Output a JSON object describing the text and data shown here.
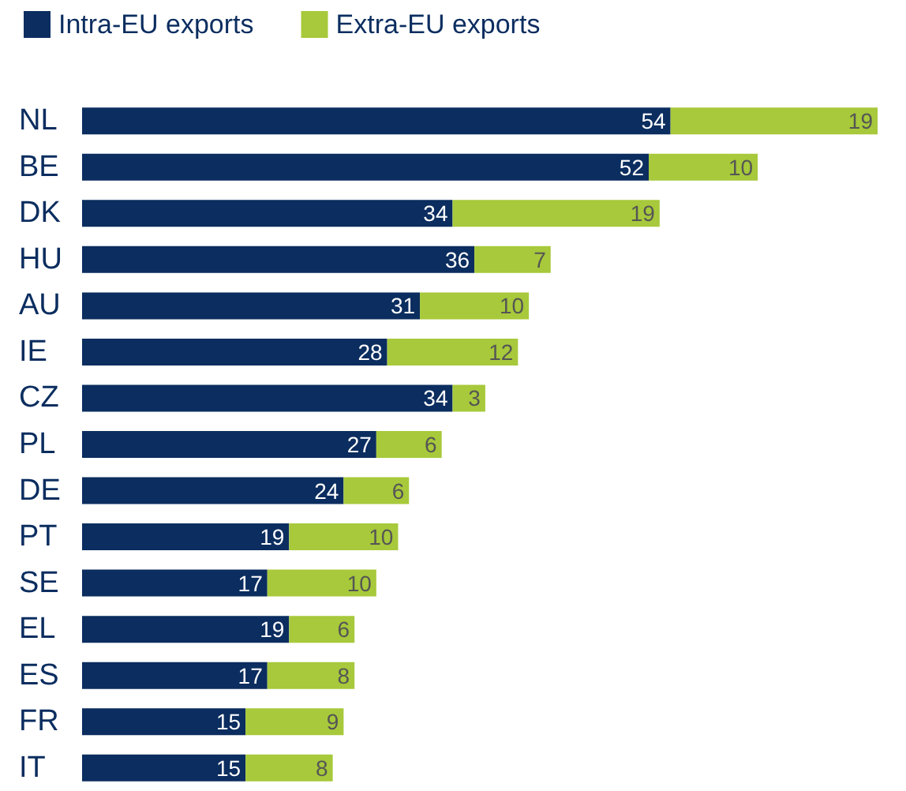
{
  "chart_data": {
    "type": "bar",
    "orientation": "horizontal",
    "stacked": true,
    "data_labels": true,
    "legend": "top left",
    "categories": [
      "NL",
      "BE",
      "DK",
      "HU",
      "AU",
      "IE",
      "CZ",
      "PL",
      "DE",
      "PT",
      "SE",
      "EL",
      "ES",
      "FR",
      "IT"
    ],
    "series": [
      {
        "name": "Intra-EU exports",
        "color": "#0b2d5f",
        "values": [
          54,
          52,
          34,
          36,
          31,
          28,
          34,
          27,
          24,
          19,
          17,
          19,
          17,
          15,
          15
        ]
      },
      {
        "name": "Extra-EU exports",
        "color": "#a7c93b",
        "values": [
          19,
          10,
          19,
          7,
          10,
          12,
          3,
          6,
          6,
          10,
          10,
          6,
          8,
          9,
          8
        ]
      }
    ]
  }
}
